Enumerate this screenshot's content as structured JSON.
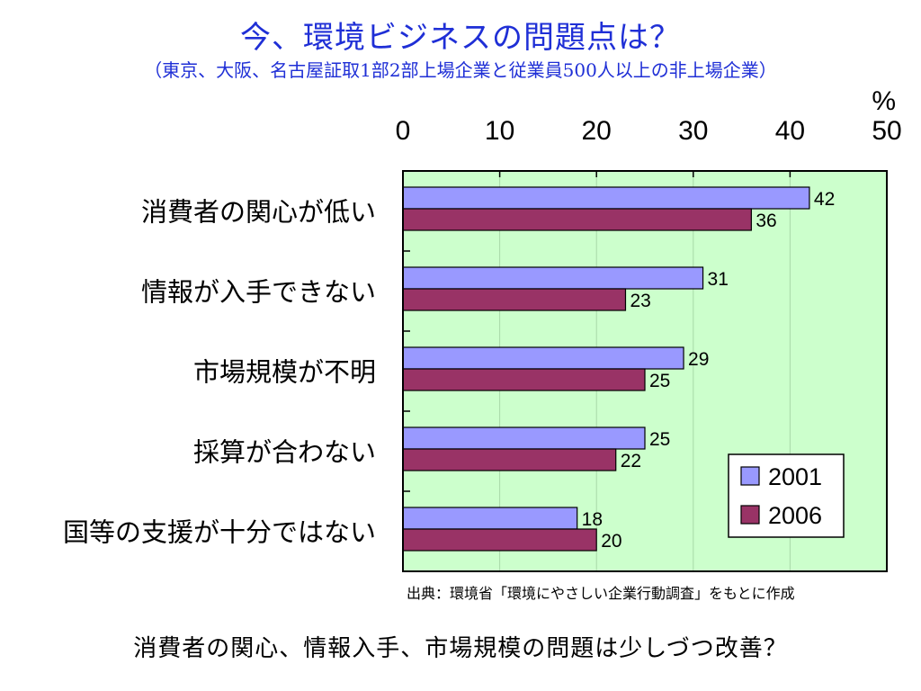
{
  "header": {
    "title": "今、環境ビジネスの問題点は？",
    "subtitle": "（東京、大阪、名古屋証取1部2部上場企業と従業員500人以上の非上場企業）"
  },
  "chart_data": {
    "type": "bar",
    "orientation": "horizontal",
    "unit": "%",
    "categories": [
      "消費者の関心が低い",
      "情報が入手できない",
      "市場規模が不明",
      "採算が合わない",
      "国等の支援が十分ではない"
    ],
    "xticks": [
      "0",
      "10",
      "20",
      "30",
      "40",
      "50"
    ],
    "xlim": [
      0,
      50
    ],
    "grid": true,
    "legend_position": "bottom-right",
    "series": [
      {
        "name": "2001",
        "values": [
          42,
          31,
          29,
          25,
          18
        ],
        "color": "#9999ff"
      },
      {
        "name": "2006",
        "values": [
          36,
          23,
          25,
          22,
          20
        ],
        "color": "#993366"
      }
    ],
    "plot_background": "#ccffcc"
  },
  "footer": {
    "source": "出典：環境省「環境にやさしい企業行動調査」をもとに作成",
    "conclusion": "消費者の関心、情報入手、市場規模の問題は少しづつ改善？"
  }
}
